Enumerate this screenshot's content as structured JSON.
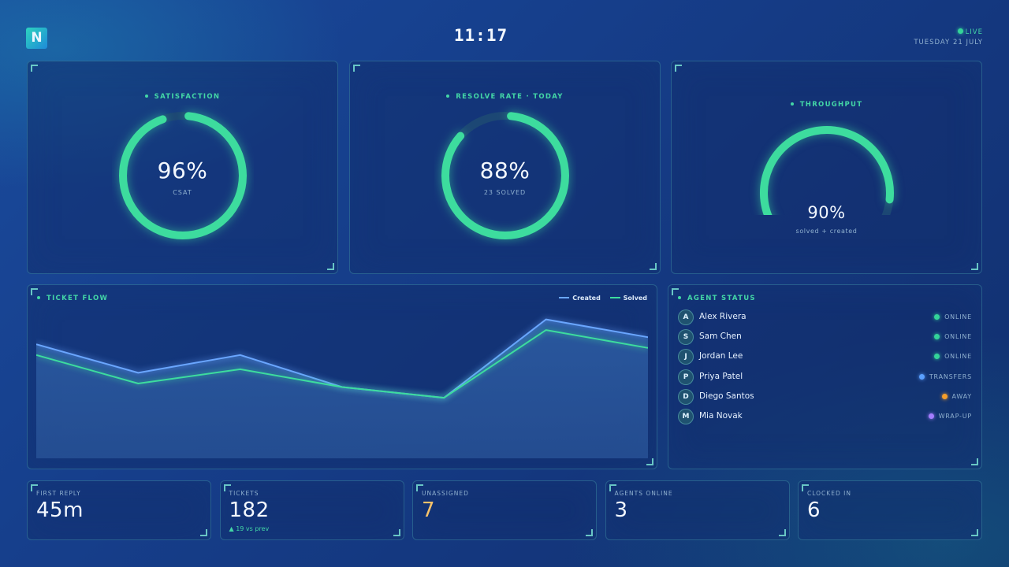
{
  "header": {
    "logo_letter": "N",
    "clock": "11:17",
    "live_label": "LIVE",
    "date": "TUESDAY 21 JULY"
  },
  "cards": {
    "satisfaction": {
      "title": "SATISFACTION",
      "value": "96%",
      "sub": "CSAT",
      "fraction": 0.96
    },
    "resolve": {
      "title": "RESOLVE RATE · TODAY",
      "value": "88%",
      "sub": "23 SOLVED",
      "fraction": 0.88
    },
    "throughput": {
      "title": "THROUGHPUT",
      "value": "90%",
      "sub": "solved + created",
      "fraction": 0.9
    }
  },
  "ticket_flow": {
    "title": "TICKET FLOW",
    "legend_created": "Created",
    "legend_solved": "Solved"
  },
  "chart_data": {
    "type": "area",
    "title": "TICKET FLOW",
    "x": [
      1,
      2,
      3,
      4,
      5,
      6,
      7
    ],
    "series": [
      {
        "name": "Created",
        "values": [
          16,
          12,
          14.5,
          10,
          8.5,
          19.5,
          17
        ],
        "color": "#6aa6ff"
      },
      {
        "name": "Solved",
        "values": [
          14.5,
          10.5,
          12.5,
          10,
          8.5,
          18,
          15.5
        ],
        "color": "#3ddc9e"
      }
    ],
    "ylim": [
      0,
      21
    ],
    "grid": false,
    "legend": "top-right"
  },
  "agents": {
    "title": "AGENT STATUS",
    "list": [
      {
        "initial": "A",
        "name": "Alex Rivera",
        "status": "ONLINE",
        "color": "#34d399"
      },
      {
        "initial": "S",
        "name": "Sam Chen",
        "status": "ONLINE",
        "color": "#34d399"
      },
      {
        "initial": "J",
        "name": "Jordan Lee",
        "status": "ONLINE",
        "color": "#34d399"
      },
      {
        "initial": "P",
        "name": "Priya Patel",
        "status": "TRANSFERS",
        "color": "#5aa0ff"
      },
      {
        "initial": "D",
        "name": "Diego Santos",
        "status": "AWAY",
        "color": "#f59e2b"
      },
      {
        "initial": "M",
        "name": "Mia Novak",
        "status": "WRAP-UP",
        "color": "#a47dff"
      }
    ]
  },
  "kpis": [
    {
      "label": "FIRST REPLY",
      "value": "45m",
      "delta": "",
      "color": "#f3f8ff"
    },
    {
      "label": "TICKETS",
      "value": "182",
      "delta": "▲ 19 vs prev",
      "color": "#f3f8ff"
    },
    {
      "label": "UNASSIGNED",
      "value": "7",
      "delta": "",
      "color": "#f7c26a"
    },
    {
      "label": "AGENTS ONLINE",
      "value": "3",
      "delta": "",
      "color": "#f3f8ff"
    },
    {
      "label": "CLOCKED IN",
      "value": "6",
      "delta": "",
      "color": "#f3f8ff"
    }
  ],
  "colors": {
    "accent": "#3ddc9e",
    "created_line": "#6aa6ff",
    "track": "#1c4774"
  }
}
